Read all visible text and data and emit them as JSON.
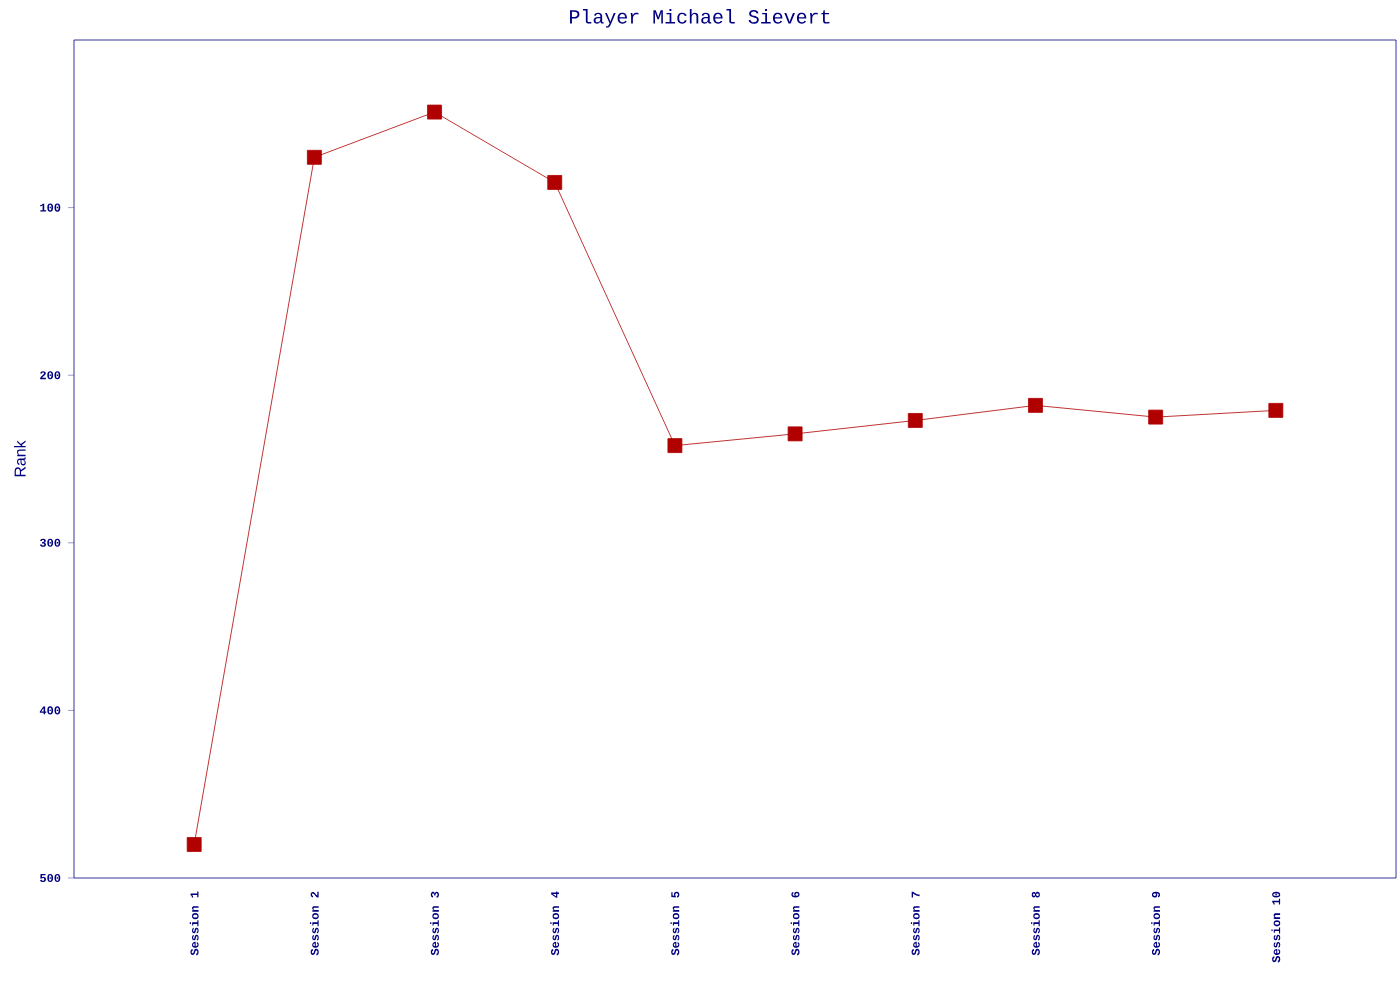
{
  "chart_data": {
    "type": "line",
    "title": "Player Michael Sievert",
    "ylabel": "Rank",
    "categories": [
      "Session 1",
      "Session 2",
      "Session 3",
      "Session 4",
      "Session 5",
      "Session 6",
      "Session 7",
      "Session 8",
      "Session 9",
      "Session 10"
    ],
    "series": [
      {
        "color": "#b00000",
        "values": [
          480,
          70,
          43,
          85,
          242,
          235,
          227,
          218,
          225,
          221
        ]
      }
    ],
    "ylim": [
      500,
      0
    ],
    "yticks": [
      100,
      200,
      300,
      400,
      500
    ],
    "marker": "square",
    "grid": false
  }
}
